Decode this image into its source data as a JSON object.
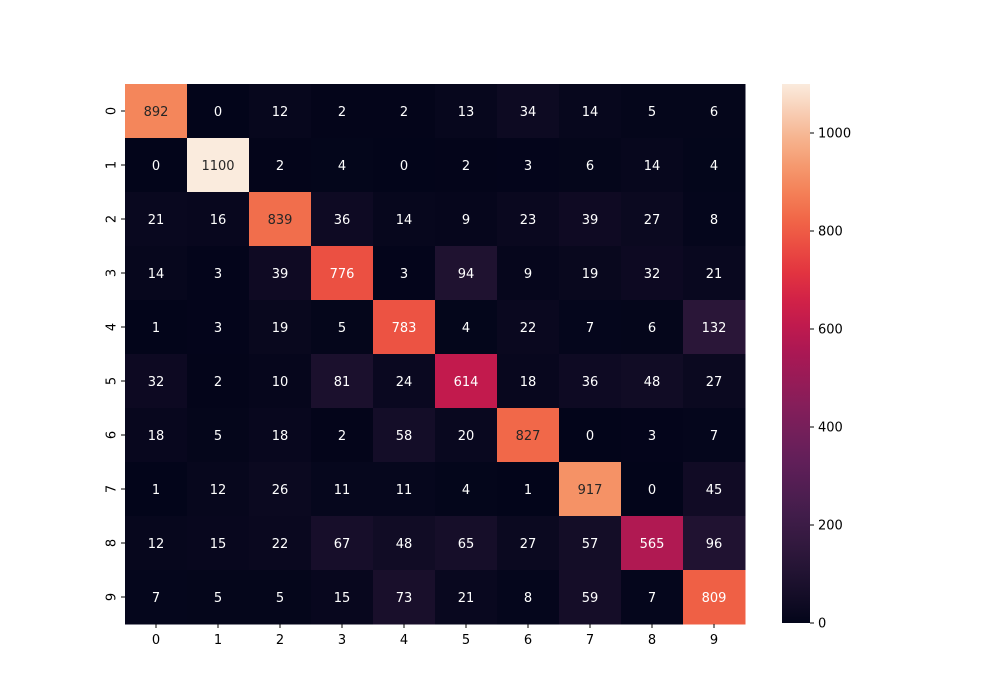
{
  "chart_data": {
    "type": "heatmap",
    "title": "",
    "xlabel": "",
    "ylabel": "",
    "x_tick_labels": [
      "0",
      "1",
      "2",
      "3",
      "4",
      "5",
      "6",
      "7",
      "8",
      "9"
    ],
    "y_tick_labels": [
      "0",
      "1",
      "2",
      "3",
      "4",
      "5",
      "6",
      "7",
      "8",
      "9"
    ],
    "values": [
      [
        892,
        0,
        12,
        2,
        2,
        13,
        34,
        14,
        5,
        6
      ],
      [
        0,
        1100,
        2,
        4,
        0,
        2,
        3,
        6,
        14,
        4
      ],
      [
        21,
        16,
        839,
        36,
        14,
        9,
        23,
        39,
        27,
        8
      ],
      [
        14,
        3,
        39,
        776,
        3,
        94,
        9,
        19,
        32,
        21
      ],
      [
        1,
        3,
        19,
        5,
        783,
        4,
        22,
        7,
        6,
        132
      ],
      [
        32,
        2,
        10,
        81,
        24,
        614,
        18,
        36,
        48,
        27
      ],
      [
        18,
        5,
        18,
        2,
        58,
        20,
        827,
        0,
        3,
        7
      ],
      [
        1,
        12,
        26,
        11,
        11,
        4,
        1,
        917,
        0,
        45
      ],
      [
        12,
        15,
        22,
        67,
        48,
        65,
        27,
        57,
        565,
        96
      ],
      [
        7,
        5,
        5,
        15,
        73,
        21,
        8,
        59,
        7,
        809
      ]
    ],
    "colormap": "rocket",
    "vmin": 0,
    "vmax": 1100,
    "colorbar_ticks": [
      {
        "value": 0,
        "label": "0"
      },
      {
        "value": 200,
        "label": "200"
      },
      {
        "value": 400,
        "label": "400"
      },
      {
        "value": 600,
        "label": "600"
      },
      {
        "value": 800,
        "label": "800"
      },
      {
        "value": 1000,
        "label": "1000"
      }
    ],
    "annotated": true,
    "grid": false,
    "legend": "colorbar-right"
  }
}
